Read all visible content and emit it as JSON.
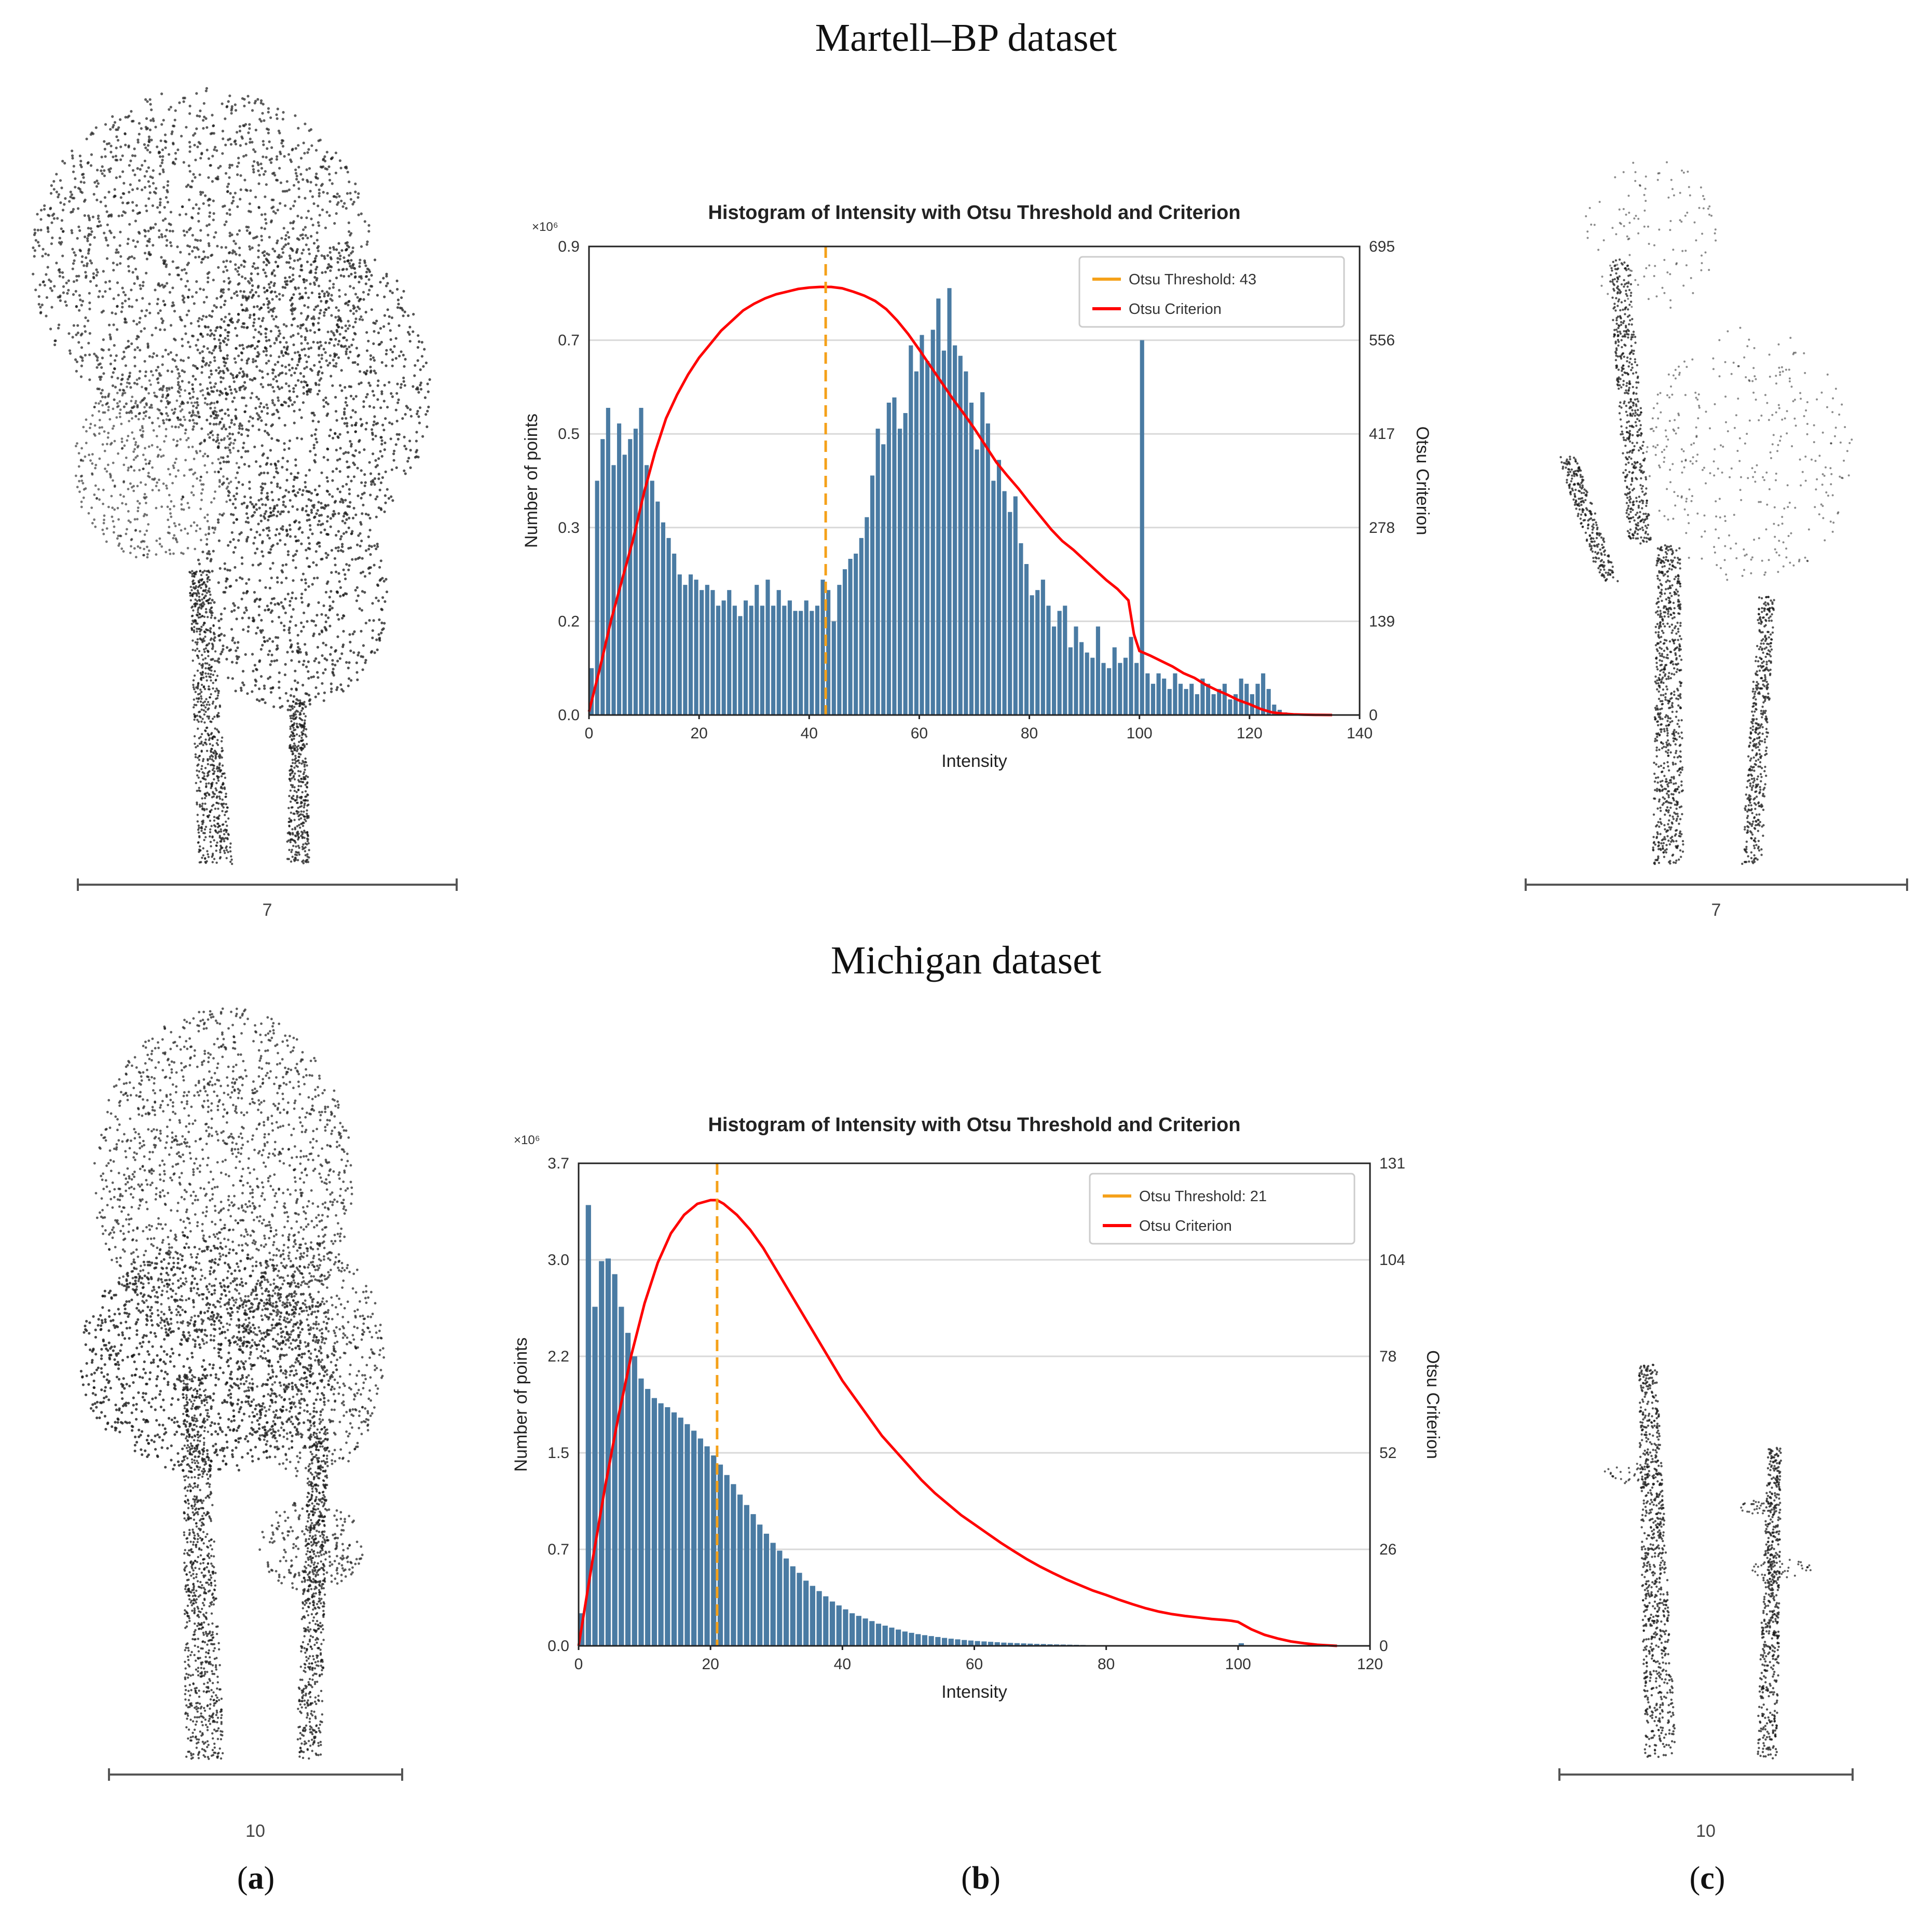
{
  "figure": {
    "panels": [
      {
        "id": "a",
        "label_open": "(",
        "label_letter": "a",
        "label_close": ")"
      },
      {
        "id": "b",
        "label_open": "(",
        "label_letter": "b",
        "label_close": ")"
      },
      {
        "id": "c",
        "label_open": "(",
        "label_letter": "c",
        "label_close": ")"
      }
    ]
  },
  "datasets": [
    {
      "title": "Martell–BP dataset",
      "scale_left": "7",
      "scale_right": "7"
    },
    {
      "title": "Michigan dataset",
      "scale_left": "10",
      "scale_right": "10"
    }
  ],
  "colors": {
    "bar": "#4a7ba3",
    "criterion": "#ff0000",
    "threshold": "#f5a11a",
    "grid": "#d9d9d9",
    "points": "#1a1a1a"
  },
  "chart_data": [
    {
      "type": "bar",
      "title": "Histogram of Intensity with Otsu Threshold and Criterion",
      "xlabel": "Intensity",
      "ylabel": "Number of points",
      "y2label": "Otsu Criterion",
      "y_multiplier": "×10⁶",
      "xlim": [
        0,
        140
      ],
      "ylim": [
        0,
        0.9
      ],
      "y2lim": [
        0,
        695
      ],
      "xticks": [
        "0",
        "20",
        "40",
        "60",
        "80",
        "100",
        "120",
        "140"
      ],
      "yticks": [
        "0.0",
        "0.2",
        "0.3",
        "0.5",
        "0.7",
        "0.9"
      ],
      "y2ticks": [
        "0",
        "139",
        "278",
        "417",
        "556",
        "695"
      ],
      "grid": true,
      "legend": "top-right",
      "threshold": {
        "value": 43,
        "name": "Otsu Threshold: 43"
      },
      "criterion_name": "Otsu Criterion",
      "bar_x": [
        0,
        1,
        2,
        3,
        4,
        5,
        6,
        7,
        8,
        9,
        10,
        11,
        12,
        13,
        14,
        15,
        16,
        17,
        18,
        19,
        20,
        21,
        22,
        23,
        24,
        25,
        26,
        27,
        28,
        29,
        30,
        31,
        32,
        33,
        34,
        35,
        36,
        37,
        38,
        39,
        40,
        41,
        42,
        43,
        44,
        45,
        46,
        47,
        48,
        49,
        50,
        51,
        52,
        53,
        54,
        55,
        56,
        57,
        58,
        59,
        60,
        61,
        62,
        63,
        64,
        65,
        66,
        67,
        68,
        69,
        70,
        71,
        72,
        73,
        74,
        75,
        76,
        77,
        78,
        79,
        80,
        81,
        82,
        83,
        84,
        85,
        86,
        87,
        88,
        89,
        90,
        91,
        92,
        93,
        94,
        95,
        96,
        97,
        98,
        99,
        100,
        101,
        102,
        103,
        104,
        105,
        106,
        107,
        108,
        109,
        110,
        111,
        112,
        113,
        114,
        115,
        116,
        117,
        118,
        119,
        120,
        121,
        122,
        123,
        124,
        125,
        126,
        127
      ],
      "bar_values": [
        0.09,
        0.45,
        0.53,
        0.59,
        0.48,
        0.56,
        0.5,
        0.53,
        0.55,
        0.59,
        0.48,
        0.45,
        0.41,
        0.37,
        0.34,
        0.31,
        0.27,
        0.25,
        0.27,
        0.26,
        0.24,
        0.25,
        0.24,
        0.21,
        0.22,
        0.24,
        0.21,
        0.19,
        0.22,
        0.21,
        0.25,
        0.21,
        0.26,
        0.21,
        0.24,
        0.21,
        0.22,
        0.2,
        0.2,
        0.22,
        0.2,
        0.21,
        0.26,
        0.24,
        0.18,
        0.25,
        0.28,
        0.3,
        0.31,
        0.34,
        0.38,
        0.46,
        0.55,
        0.52,
        0.6,
        0.61,
        0.55,
        0.58,
        0.71,
        0.66,
        0.73,
        0.68,
        0.74,
        0.8,
        0.7,
        0.82,
        0.71,
        0.69,
        0.66,
        0.6,
        0.51,
        0.62,
        0.56,
        0.45,
        0.49,
        0.43,
        0.39,
        0.42,
        0.33,
        0.29,
        0.23,
        0.24,
        0.26,
        0.21,
        0.17,
        0.2,
        0.21,
        0.13,
        0.17,
        0.14,
        0.12,
        0.11,
        0.17,
        0.1,
        0.09,
        0.13,
        0.1,
        0.11,
        0.15,
        0.1,
        0.72,
        0.08,
        0.06,
        0.08,
        0.07,
        0.05,
        0.08,
        0.06,
        0.05,
        0.06,
        0.04,
        0.07,
        0.06,
        0.04,
        0.05,
        0.06,
        0.03,
        0.04,
        0.07,
        0.06,
        0.04,
        0.06,
        0.08,
        0.05,
        0.02,
        0.01,
        0.005,
        0.002
      ],
      "criterion_x": [
        0,
        2,
        4,
        6,
        8,
        10,
        12,
        14,
        16,
        18,
        20,
        22,
        24,
        26,
        28,
        30,
        32,
        34,
        36,
        38,
        40,
        42,
        43,
        44,
        46,
        48,
        50,
        52,
        54,
        56,
        58,
        60,
        62,
        64,
        66,
        68,
        70,
        72,
        74,
        76,
        78,
        80,
        82,
        84,
        86,
        88,
        90,
        92,
        94,
        96,
        98,
        99,
        100,
        102,
        104,
        106,
        108,
        110,
        112,
        114,
        116,
        118,
        120,
        122,
        124,
        126,
        128,
        130,
        132,
        135
      ],
      "criterion_values": [
        5,
        70,
        140,
        200,
        260,
        330,
        390,
        440,
        475,
        505,
        530,
        550,
        570,
        585,
        600,
        610,
        618,
        624,
        628,
        632,
        634,
        635,
        635,
        635,
        633,
        628,
        622,
        614,
        602,
        585,
        565,
        542,
        518,
        494,
        470,
        448,
        425,
        400,
        375,
        355,
        336,
        315,
        295,
        275,
        258,
        245,
        230,
        215,
        200,
        187,
        170,
        120,
        95,
        88,
        80,
        72,
        62,
        55,
        45,
        37,
        30,
        22,
        16,
        9,
        4,
        2,
        1,
        0.5,
        0.2,
        0
      ]
    },
    {
      "type": "bar",
      "title": "Histogram of Intensity with Otsu Threshold and Criterion",
      "xlabel": "Intensity",
      "ylabel": "Number of points",
      "y2label": "Otsu Criterion",
      "y_multiplier": "×10⁶",
      "xlim": [
        0,
        120
      ],
      "ylim": [
        0,
        3.7
      ],
      "y2lim": [
        0,
        131
      ],
      "xticks": [
        "0",
        "20",
        "40",
        "60",
        "80",
        "100",
        "120"
      ],
      "yticks": [
        "0.0",
        "0.7",
        "1.5",
        "2.2",
        "3.0",
        "3.7"
      ],
      "y2ticks": [
        "0",
        "26",
        "52",
        "78",
        "104",
        "131"
      ],
      "grid": true,
      "legend": "top-right",
      "threshold": {
        "value": 21,
        "name": "Otsu Threshold: 21"
      },
      "criterion_name": "Otsu Criterion",
      "bar_x": [
        0,
        1,
        2,
        3,
        4,
        5,
        6,
        7,
        8,
        9,
        10,
        11,
        12,
        13,
        14,
        15,
        16,
        17,
        18,
        19,
        20,
        21,
        22,
        23,
        24,
        25,
        26,
        27,
        28,
        29,
        30,
        31,
        32,
        33,
        34,
        35,
        36,
        37,
        38,
        39,
        40,
        41,
        42,
        43,
        44,
        45,
        46,
        47,
        48,
        49,
        50,
        51,
        52,
        53,
        54,
        55,
        56,
        57,
        58,
        59,
        60,
        61,
        62,
        63,
        64,
        65,
        66,
        67,
        68,
        69,
        70,
        71,
        72,
        73,
        74,
        75,
        76,
        77,
        78,
        79,
        80,
        81,
        82,
        83,
        84,
        85,
        86,
        87,
        88,
        89,
        90,
        91,
        92,
        93,
        94,
        95,
        96,
        97,
        98,
        99,
        100,
        101,
        102,
        103,
        104,
        105,
        106,
        107,
        108,
        109,
        110
      ],
      "bar_values": [
        0.25,
        3.38,
        2.6,
        2.95,
        2.97,
        2.85,
        2.6,
        2.4,
        2.22,
        2.05,
        1.97,
        1.9,
        1.86,
        1.83,
        1.79,
        1.75,
        1.7,
        1.65,
        1.59,
        1.53,
        1.46,
        1.39,
        1.31,
        1.24,
        1.16,
        1.08,
        1.01,
        0.93,
        0.86,
        0.79,
        0.73,
        0.67,
        0.61,
        0.56,
        0.5,
        0.46,
        0.42,
        0.38,
        0.34,
        0.31,
        0.28,
        0.25,
        0.23,
        0.21,
        0.19,
        0.17,
        0.155,
        0.14,
        0.125,
        0.11,
        0.1,
        0.09,
        0.082,
        0.075,
        0.068,
        0.061,
        0.055,
        0.05,
        0.045,
        0.041,
        0.037,
        0.034,
        0.031,
        0.028,
        0.025,
        0.023,
        0.021,
        0.019,
        0.017,
        0.015,
        0.014,
        0.012,
        0.011,
        0.01,
        0.009,
        0.008,
        0.007,
        0.006,
        0.0055,
        0.005,
        0.0045,
        0.004,
        0.0035,
        0.003,
        0.0028,
        0.0025,
        0.0022,
        0.002,
        0.0018,
        0.0016,
        0.0014,
        0.0012,
        0.001,
        0.0009,
        0.0008,
        0.0007,
        0.0006,
        0.0005,
        0.0005,
        0.0004,
        0.02,
        0.0003,
        0.0003,
        0.0002,
        0.0002,
        0.0001,
        0.0001,
        0.0001,
        0.0001,
        0.0001,
        0.0001
      ],
      "criterion_x": [
        0,
        2,
        4,
        6,
        8,
        10,
        12,
        14,
        16,
        18,
        20,
        21,
        22,
        24,
        26,
        28,
        30,
        32,
        34,
        36,
        38,
        40,
        42,
        44,
        46,
        48,
        50,
        52,
        54,
        56,
        58,
        60,
        62,
        64,
        66,
        68,
        70,
        72,
        74,
        76,
        78,
        80,
        82,
        84,
        86,
        88,
        90,
        92,
        94,
        96,
        98,
        99,
        100,
        102,
        104,
        106,
        108,
        110,
        112,
        115
      ],
      "criterion_values": [
        0,
        22,
        43,
        62,
        79,
        93,
        104,
        112,
        117,
        120,
        121,
        121,
        120,
        117,
        113,
        108,
        102,
        96,
        90,
        84,
        78,
        72,
        67,
        62,
        57,
        53,
        49,
        45,
        41.5,
        38.5,
        35.5,
        33,
        30.5,
        28,
        25.7,
        23.5,
        21.5,
        19.7,
        18,
        16.5,
        15,
        13.8,
        12.5,
        11.3,
        10.2,
        9.3,
        8.6,
        8.1,
        7.7,
        7.3,
        7,
        6.8,
        6.5,
        4.5,
        3,
        2,
        1.2,
        0.7,
        0.3,
        0
      ]
    }
  ]
}
